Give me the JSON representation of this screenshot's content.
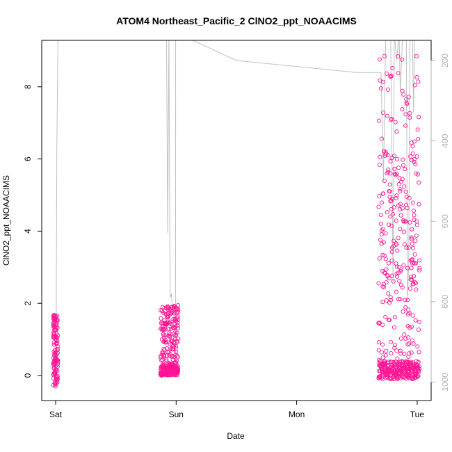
{
  "chart_data": {
    "type": "scatter",
    "title": "ATOM4 Northeast_Pacific_2 ClNO2_ppt_NOAACIMS",
    "xlabel": "Date",
    "ylabel": "ClNO2_ppt_NOAACIMS",
    "x_ticks": [
      "Sat",
      "Sun",
      "Mon",
      "Tue"
    ],
    "x_range_days": [
      0,
      3
    ],
    "ylim": [
      0,
      9
    ],
    "y_ticks": [
      0,
      2,
      4,
      6,
      8
    ],
    "y2_ticks": [
      200,
      400,
      600,
      800,
      1000
    ],
    "y2_reversed": true,
    "y2_range": [
      130,
      1045
    ],
    "point_color": "#ff1493",
    "line_color": "#c0c0c0",
    "grid": false,
    "series": [
      {
        "role": "points",
        "segments": [
          {
            "x_start": -0.02,
            "x_end": 0.02,
            "y_min": -0.3,
            "y_max": 1.7
          },
          {
            "x_start": 0.87,
            "x_end": 1.02,
            "y_min": -0.1,
            "y_max": 1.95
          },
          {
            "x_start": 2.68,
            "x_end": 3.02,
            "y_min": -0.1,
            "y_max": 8.9
          }
        ]
      },
      {
        "role": "altitude-line",
        "points": [
          [
            0.0,
            1000
          ],
          [
            0.005,
            820
          ],
          [
            0.01,
            420
          ],
          [
            0.02,
            130
          ],
          [
            0.8,
            130
          ],
          [
            0.87,
            130
          ],
          [
            0.88,
            130
          ],
          [
            0.9,
            130
          ],
          [
            0.92,
            130
          ],
          [
            0.93,
            630
          ],
          [
            0.94,
            130
          ],
          [
            0.95,
            790
          ],
          [
            0.96,
            780
          ],
          [
            0.97,
            820
          ],
          [
            0.98,
            810
          ],
          [
            0.99,
            810
          ],
          [
            0.995,
            960
          ],
          [
            0.996,
            130
          ],
          [
            1.5,
            200
          ],
          [
            2.5,
            230
          ],
          [
            2.7,
            230
          ],
          [
            2.72,
            500
          ],
          [
            2.74,
            130
          ],
          [
            2.78,
            130
          ],
          [
            2.8,
            750
          ],
          [
            2.81,
            130
          ],
          [
            2.83,
            200
          ],
          [
            2.85,
            130
          ],
          [
            2.86,
            280
          ],
          [
            2.88,
            130
          ],
          [
            2.91,
            130
          ],
          [
            2.92,
            800
          ],
          [
            2.93,
            700
          ],
          [
            2.94,
            130
          ],
          [
            2.96,
            130
          ],
          [
            2.97,
            330
          ],
          [
            2.98,
            130
          ],
          [
            3.0,
            130
          ]
        ]
      }
    ]
  }
}
